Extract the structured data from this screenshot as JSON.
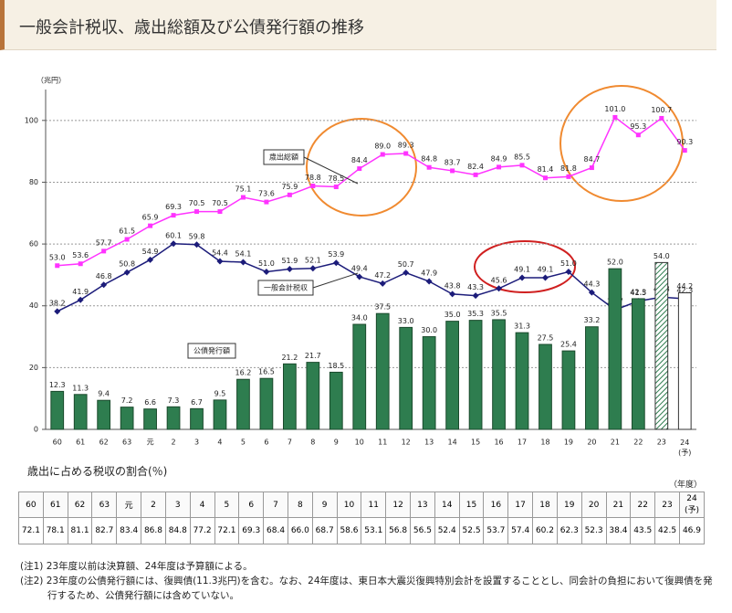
{
  "header": {
    "title": "一般会計税収、歳出総額及び公債発行額の推移"
  },
  "chart_data": {
    "type": "bar",
    "y_unit": "（兆円）",
    "categories": [
      "60",
      "61",
      "62",
      "63",
      "元",
      "2",
      "3",
      "4",
      "5",
      "6",
      "7",
      "8",
      "9",
      "10",
      "11",
      "12",
      "13",
      "14",
      "15",
      "16",
      "17",
      "18",
      "19",
      "20",
      "21",
      "22",
      "23",
      "24\n(予)"
    ],
    "ylim": [
      0,
      110
    ],
    "yticks": [
      0,
      20,
      40,
      60,
      80,
      100
    ],
    "grid": true,
    "series": [
      {
        "name": "歳出総額",
        "type": "line",
        "marker": "square",
        "color": "#ff33ff",
        "values": [
          53.0,
          53.6,
          57.7,
          61.5,
          65.9,
          69.3,
          70.5,
          70.5,
          75.1,
          73.6,
          75.9,
          78.8,
          78.5,
          84.4,
          89.0,
          89.3,
          84.8,
          83.7,
          82.4,
          84.9,
          85.5,
          81.4,
          81.8,
          84.7,
          101.0,
          95.3,
          100.7,
          90.3
        ],
        "value_labels": [
          "53.0",
          "53.6",
          "57.7",
          "61.5",
          "65.9",
          "69.3",
          "70.5",
          "70.5",
          "75.1",
          "73.6",
          "75.9",
          "78.8",
          "78.5",
          "84.4",
          "89.0",
          "89.3",
          "84.8",
          "83.7",
          "82.4",
          "84.9",
          "85.5",
          "81.4",
          "81.8",
          "84.7",
          "101.0",
          "95.3",
          "100.7",
          "90.3"
        ]
      },
      {
        "name": "一般会計税収",
        "type": "line",
        "marker": "diamond",
        "color": "#1c1c7a",
        "values": [
          38.2,
          41.9,
          46.8,
          50.8,
          54.9,
          60.1,
          59.8,
          54.4,
          54.1,
          51.0,
          51.9,
          52.1,
          53.9,
          49.4,
          47.2,
          50.7,
          47.9,
          43.8,
          43.3,
          45.6,
          49.1,
          49.1,
          51.0,
          44.3,
          38.7,
          41.5,
          42.8,
          42.3
        ],
        "value_labels": [
          "38.2",
          "41.9",
          "46.8",
          "50.8",
          "54.9",
          "60.1",
          "59.8",
          "54.4",
          "54.1",
          "51.0",
          "51.9",
          "52.1",
          "53.9",
          "49.4",
          "47.2",
          "50.7",
          "47.9",
          "43.8",
          "43.3",
          "45.6",
          "49.1",
          "49.1",
          "51.0",
          "44.3",
          "38.7",
          "41.5",
          "42.8",
          "42.3"
        ]
      },
      {
        "name": "公債発行額",
        "type": "bar",
        "color": "#2e7d4f",
        "bar_styles": [
          "solid",
          "solid",
          "solid",
          "solid",
          "solid",
          "solid",
          "solid",
          "solid",
          "solid",
          "solid",
          "solid",
          "solid",
          "solid",
          "solid",
          "solid",
          "solid",
          "solid",
          "solid",
          "solid",
          "solid",
          "solid",
          "solid",
          "solid",
          "solid",
          "solid",
          "solid",
          "hatched",
          "outline"
        ],
        "values": [
          12.3,
          11.3,
          9.4,
          7.2,
          6.6,
          7.3,
          6.7,
          9.5,
          16.2,
          16.5,
          21.2,
          21.7,
          18.5,
          34.0,
          37.5,
          33.0,
          30.0,
          35.0,
          35.3,
          35.5,
          31.3,
          27.5,
          25.4,
          33.2,
          52.0,
          42.3,
          54.0,
          44.2
        ],
        "value_labels": [
          "12.3",
          "11.3",
          "9.4",
          "7.2",
          "6.6",
          "7.3",
          "6.7",
          "9.5",
          "16.2",
          "16.5",
          "21.2",
          "21.7",
          "18.5",
          "34.0",
          "37.5",
          "33.0",
          "30.0",
          "35.0",
          "35.3",
          "35.5",
          "31.3",
          "27.5",
          "25.4",
          "33.2",
          "52.0",
          "42.3",
          "54.0",
          "44.2"
        ]
      }
    ]
  },
  "table": {
    "title": "歳出に占める税収の割合(％)",
    "unit": "（年度）",
    "values": [
      "72.1",
      "78.1",
      "81.1",
      "82.7",
      "83.4",
      "86.8",
      "84.8",
      "77.2",
      "72.1",
      "69.3",
      "68.4",
      "66.0",
      "68.7",
      "58.6",
      "53.1",
      "56.8",
      "56.5",
      "52.4",
      "52.5",
      "53.7",
      "57.4",
      "60.2",
      "62.3",
      "52.3",
      "38.4",
      "43.5",
      "42.5",
      "46.9"
    ]
  },
  "notes": [
    "(注1) 23年度以前は決算額、24年度は予算額による。",
    "(注2) 23年度の公債発行額には、復興債(11.3兆円)を含む。なお、24年度は、東日本大震災復興特別会計を設置することとし、同会計の負担において復興債を発行するため、公債発行額には含めていない。"
  ]
}
